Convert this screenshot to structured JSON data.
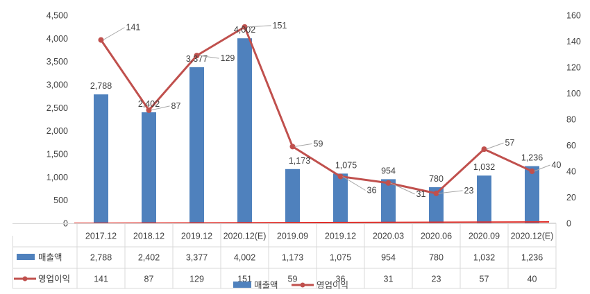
{
  "chart_data": {
    "type": "bar",
    "categories": [
      "2017.12",
      "2018.12",
      "2019.12",
      "2020.12(E)",
      "2019.09",
      "2019.12",
      "2020.03",
      "2020.06",
      "2020.09",
      "2020.12(E)"
    ],
    "series": [
      {
        "name": "매출액",
        "type": "bar",
        "axis": "left",
        "color": "#4F81BD",
        "values": [
          2788,
          2402,
          3377,
          4002,
          1173,
          1075,
          954,
          780,
          1032,
          1236
        ]
      },
      {
        "name": "영업이익",
        "type": "line",
        "axis": "right",
        "color": "#C0504D",
        "values": [
          141,
          87,
          129,
          151,
          59,
          36,
          31,
          23,
          57,
          40
        ]
      }
    ],
    "left_axis": {
      "min": 0,
      "max": 4500,
      "step": 500
    },
    "right_axis": {
      "min": 0,
      "max": 160,
      "step": 20
    },
    "left_ticks": [
      "0",
      "500",
      "1,000",
      "1,500",
      "2,000",
      "2,500",
      "3,000",
      "3,500",
      "4,000",
      "4,500"
    ],
    "right_ticks": [
      "0",
      "20",
      "40",
      "60",
      "80",
      "100",
      "120",
      "140",
      "160"
    ],
    "bar_labels": [
      "2,788",
      "2,402",
      "3,377",
      "4,002",
      "1,173",
      "1,075",
      "954",
      "780",
      "1,032",
      "1,236"
    ],
    "line_labels": [
      "141",
      "87",
      "129",
      "151",
      "59",
      "36",
      "31",
      "23",
      "57",
      "40"
    ],
    "table_rows": [
      {
        "name": "매출액",
        "values": [
          "2,788",
          "2,402",
          "3,377",
          "4,002",
          "1,173",
          "1,075",
          "954",
          "780",
          "1,032",
          "1,236"
        ]
      },
      {
        "name": "영업이익",
        "values": [
          "141",
          "87",
          "129",
          "151",
          "59",
          "36",
          "31",
          "23",
          "57",
          "40"
        ]
      }
    ],
    "legend": [
      "매출액",
      "영업이익"
    ],
    "legend_position": "bottom",
    "grid": false
  }
}
